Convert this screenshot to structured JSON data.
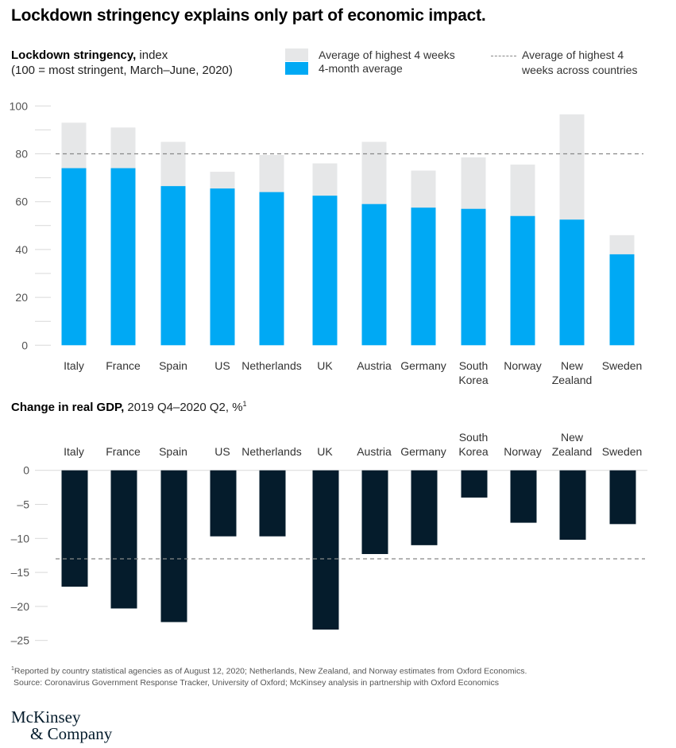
{
  "title": "Lockdown stringency explains only part of economic impact.",
  "top_chart": {
    "subtitle_bold": "Lockdown stringency,",
    "subtitle_rest": " index",
    "subtitle_line2": "(100 = most stringent, March–June, 2020)",
    "legend": {
      "peak": "Average of highest 4 weeks",
      "avg": "4-month average",
      "dashed_line1": "Average of highest 4",
      "dashed_line2": "weeks across countries"
    }
  },
  "bottom_chart": {
    "subtitle_bold": "Change in real GDP,",
    "subtitle_rest": " 2019 Q4–2020 Q2, %",
    "subtitle_sup": "1"
  },
  "footnote": "Reported by country statistical agencies as of August 12, 2020; Netherlands, New Zealand, and Norway estimates from Oxford Economics.",
  "footnote_mark": "1",
  "source": "Source: Coronavirus Government Response Tracker, University of Oxford; McKinsey analysis in partnership with Oxford Economics",
  "logo": {
    "line1": "McKinsey",
    "line2": "& Company"
  },
  "colors": {
    "peak": "#e6e7e8",
    "avg": "#00a9f4",
    "gdp": "#051c2c",
    "dash": "#888888"
  },
  "chart_data": [
    {
      "type": "bar",
      "stacked_overlay": true,
      "title": "Lockdown stringency, index (100 = most stringent, March–June, 2020)",
      "categories": [
        [
          "Italy"
        ],
        [
          "France"
        ],
        [
          "Spain"
        ],
        [
          "US"
        ],
        [
          "Netherlands"
        ],
        [
          "UK"
        ],
        [
          "Austria"
        ],
        [
          "Germany"
        ],
        [
          "South",
          "Korea"
        ],
        [
          "Norway"
        ],
        [
          "New",
          "Zealand"
        ],
        [
          "Sweden"
        ]
      ],
      "series": [
        {
          "name": "Average of highest 4 weeks",
          "values": [
            93,
            91,
            85,
            72.5,
            79.5,
            76,
            85,
            73,
            78.5,
            75.5,
            96.5,
            46
          ]
        },
        {
          "name": "4-month average",
          "values": [
            74,
            74,
            66.5,
            65.5,
            64,
            62.5,
            59,
            57.5,
            57,
            54,
            52.5,
            38
          ]
        }
      ],
      "reference_line": {
        "name": "Average of highest 4 weeks across countries",
        "value": 80
      },
      "ylim": [
        0,
        100
      ],
      "yticks": [
        0,
        20,
        40,
        60,
        80,
        100
      ],
      "minor_yticks": [
        10,
        30,
        50,
        70,
        90
      ],
      "xlabel": "",
      "ylabel": "",
      "legend": "top"
    },
    {
      "type": "bar",
      "title": "Change in real GDP, 2019 Q4–2020 Q2, %",
      "categories": [
        [
          "Italy"
        ],
        [
          "France"
        ],
        [
          "Spain"
        ],
        [
          "US"
        ],
        [
          "Netherlands"
        ],
        [
          "UK"
        ],
        [
          "Austria"
        ],
        [
          "Germany"
        ],
        [
          "South",
          "Korea"
        ],
        [
          "Norway"
        ],
        [
          "New",
          "Zealand"
        ],
        [
          "Sweden"
        ]
      ],
      "values": [
        -17.1,
        -20.3,
        -22.3,
        -9.7,
        -9.7,
        -23.4,
        -12.3,
        -11.0,
        -4.0,
        -7.7,
        -10.2,
        -7.9
      ],
      "reference_line": {
        "name": "Average",
        "value": -13
      },
      "ylim": [
        -25,
        0
      ],
      "yticks": [
        0,
        -5,
        -10,
        -15,
        -20,
        -25
      ],
      "ytick_labels": [
        "0",
        "–5",
        "–10",
        "–15",
        "–20",
        "–25"
      ],
      "xlabel": "",
      "ylabel": ""
    }
  ]
}
